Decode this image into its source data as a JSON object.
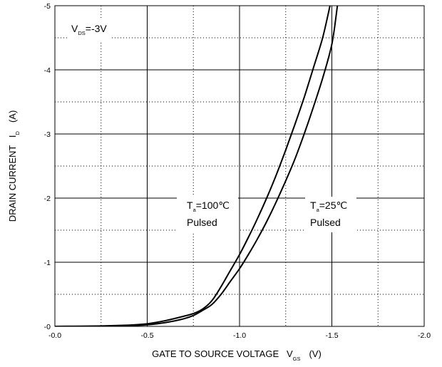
{
  "chart_data": {
    "type": "line",
    "xlabel": {
      "text": "GATE TO SOURCE VOLTAGE   V",
      "sub": "GS",
      "unit": "(V)"
    },
    "ylabel": {
      "text": "DRAIN CURRENT   I",
      "sub": "D",
      "unit": "(A)"
    },
    "xlim": [
      0,
      -2.0
    ],
    "ylim": [
      0,
      -5
    ],
    "x_ticks": [
      "-0.0",
      "-0.5",
      "-1.0",
      "-1.5",
      "-2.0"
    ],
    "x_tick_values": [
      0,
      -0.5,
      -1.0,
      -1.5,
      -2.0
    ],
    "y_ticks": [
      "-0",
      "-1",
      "-2",
      "-3",
      "-4",
      "-5"
    ],
    "y_tick_values": [
      0,
      -1,
      -2,
      -3,
      -4,
      -5
    ],
    "grid": {
      "major": true,
      "minor_dotted": true
    },
    "condition": {
      "main": "V",
      "sub": "DS",
      "value": "=-3V"
    },
    "annotations": [
      {
        "main": "T",
        "sub": "a",
        "value": "=100℃",
        "line2": "Pulsed"
      },
      {
        "main": "T",
        "sub": "a",
        "value": "=25℃",
        "line2": "Pulsed"
      }
    ],
    "series": [
      {
        "x": [
          0,
          -0.2,
          -0.4,
          -0.5,
          -0.6,
          -0.7,
          -0.75,
          -0.8,
          -0.85,
          -0.9,
          -0.95,
          -1.0,
          -1.05,
          -1.1,
          -1.15,
          -1.2,
          -1.25,
          -1.3,
          -1.35,
          -1.4,
          -1.45,
          -1.49
        ],
        "y": [
          0,
          -0.005,
          -0.02,
          -0.04,
          -0.09,
          -0.16,
          -0.2,
          -0.27,
          -0.4,
          -0.62,
          -0.87,
          -1.12,
          -1.4,
          -1.7,
          -2.02,
          -2.37,
          -2.75,
          -3.15,
          -3.57,
          -4.03,
          -4.5,
          -5.0
        ]
      },
      {
        "x": [
          0,
          -0.2,
          -0.4,
          -0.5,
          -0.6,
          -0.7,
          -0.75,
          -0.8,
          -0.85,
          -0.9,
          -0.95,
          -1.0,
          -1.05,
          -1.1,
          -1.15,
          -1.2,
          -1.25,
          -1.3,
          -1.35,
          -1.4,
          -1.45,
          -1.5,
          -1.53
        ],
        "y": [
          0,
          -0.003,
          -0.012,
          -0.025,
          -0.06,
          -0.12,
          -0.17,
          -0.25,
          -0.34,
          -0.5,
          -0.7,
          -0.9,
          -1.13,
          -1.38,
          -1.65,
          -1.95,
          -2.27,
          -2.61,
          -3.0,
          -3.42,
          -3.87,
          -4.4,
          -5.0
        ]
      }
    ]
  }
}
